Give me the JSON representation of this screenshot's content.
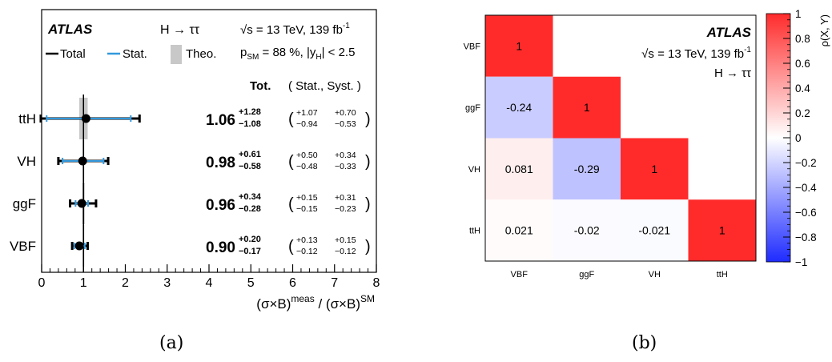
{
  "panel_a": {
    "atlas": "ATLAS",
    "process": "H → ττ",
    "energy_label": "√s = 13 TeV, 139 fb",
    "energy_sup": "-1",
    "psm_text": "p",
    "psm_sub": "SM",
    "psm_rest": " = 88 %, |y",
    "psm_sub2": "H",
    "psm_end": "| < 2.5",
    "legend": {
      "total": "Total",
      "stat": "Stat.",
      "theo": "Theo."
    },
    "header_tot": "Tot.",
    "header_statsyst": "( Stat., Syst. )",
    "xlabel": "(σ×B)",
    "xlabel_sup1": "meas",
    "xlabel_mid": " / (σ×B)",
    "xlabel_sup2": "SM",
    "caption": "(a)",
    "colors": {
      "total": "#000000",
      "stat": "#3399dd",
      "theo": "#c8c8c8"
    }
  },
  "panel_b": {
    "atlas": "ATLAS",
    "energy_label": "√s = 13 TeV, 139 fb",
    "energy_sup": "-1",
    "process": "H → ττ",
    "zlabel": "ρ(X, Y)",
    "caption": "(b)"
  },
  "chart_data": [
    {
      "type": "scatter",
      "categories": [
        "ttH",
        "VH",
        "ggF",
        "VBF"
      ],
      "values": [
        1.06,
        0.98,
        0.96,
        0.9
      ],
      "tot_up": [
        "+1.28",
        "+0.61",
        "+0.34",
        "+0.20"
      ],
      "tot_down": [
        "−1.08",
        "−0.58",
        "−0.28",
        "−0.17"
      ],
      "stat_up": [
        "+1.07",
        "+0.50",
        "+0.15",
        "+0.13"
      ],
      "stat_down": [
        "−0.94",
        "−0.48",
        "−0.15",
        "−0.12"
      ],
      "syst_up": [
        "+0.70",
        "+0.34",
        "+0.31",
        "+0.15"
      ],
      "syst_down": [
        "−0.53",
        "−0.33",
        "−0.23",
        "−0.12"
      ],
      "theo_band": [
        [
          0.9,
          1.1
        ],
        [
          0.98,
          1.02
        ],
        [
          0.97,
          1.03
        ],
        [
          0.98,
          1.02
        ]
      ],
      "value_labels": [
        "1.06",
        "0.98",
        "0.96",
        "0.90"
      ],
      "xlim": [
        0,
        8
      ],
      "xticks": [
        "0",
        "1",
        "2",
        "3",
        "4",
        "5",
        "6",
        "7",
        "8"
      ],
      "sm_line": 1
    },
    {
      "type": "heatmap",
      "labels": [
        "VBF",
        "ggF",
        "VH",
        "ttH"
      ],
      "matrix": [
        [
          1,
          null,
          null,
          null
        ],
        [
          -0.24,
          1,
          null,
          null
        ],
        [
          0.081,
          -0.29,
          1,
          null
        ],
        [
          0.021,
          -0.02,
          -0.021,
          1
        ]
      ],
      "cell_labels": [
        [
          "1",
          "",
          "",
          ""
        ],
        [
          "-0.24",
          "1",
          "",
          ""
        ],
        [
          "0.081",
          "-0.29",
          "1",
          ""
        ],
        [
          "0.021",
          "-0.02",
          "-0.021",
          "1"
        ]
      ],
      "zlim": [
        -1,
        1
      ],
      "zticks": [
        "1",
        "0.8",
        "0.6",
        "0.4",
        "0.2",
        "0",
        "−0.2",
        "−0.4",
        "−0.6",
        "−0.8",
        "−1"
      ]
    }
  ]
}
